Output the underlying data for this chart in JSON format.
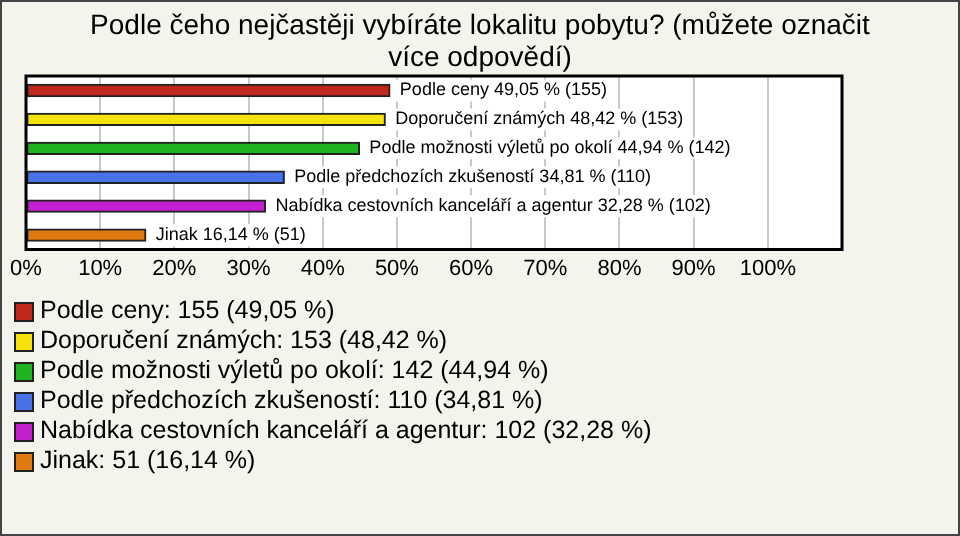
{
  "chart_data": {
    "type": "bar",
    "orientation": "horizontal",
    "stacked": true,
    "title": "Podle čeho nejčastěji vybíráte lokalitu pobytu? (můžete označit více odpovědí)",
    "categories": [
      null,
      null,
      null,
      null,
      null,
      null
    ],
    "series": [
      {
        "name": "Podle ceny: 155 (49,05 %)",
        "color": "#c0281e",
        "values": [
          49.05,
          null,
          null,
          null,
          null,
          null
        ],
        "value_labels": [
          "Podle ceny 49,05 % (155)",
          null,
          null,
          null,
          null,
          null
        ]
      },
      {
        "name": "Doporučení známých: 153 (48,42 %)",
        "color": "#f5e20a",
        "values": [
          null,
          48.42,
          null,
          null,
          null,
          null
        ],
        "value_labels": [
          null,
          "Doporučení známých 48,42 % (153)",
          null,
          null,
          null,
          null
        ]
      },
      {
        "name": "Podle možnosti výletů po okolí: 142 (44,94 %)",
        "color": "#1fb41f",
        "values": [
          null,
          null,
          44.94,
          null,
          null,
          null
        ],
        "value_labels": [
          null,
          null,
          "Podle možnosti výletů po okolí 44,94 % (142)",
          null,
          null,
          null
        ]
      },
      {
        "name": "Podle předchozích zkušeností: 110 (34,81 %)",
        "color": "#4a72e8",
        "values": [
          null,
          null,
          null,
          34.81,
          null,
          null
        ],
        "value_labels": [
          null,
          null,
          null,
          "Podle předchozích zkušeností 34,81 % (110)",
          null,
          null
        ]
      },
      {
        "name": "Nabídka cestovních kanceláří a agentur: 102 (32,28 %)",
        "color": "#c21fcf",
        "values": [
          null,
          null,
          null,
          null,
          32.28,
          null
        ],
        "value_labels": [
          null,
          null,
          null,
          null,
          "Nabídka cestovních kanceláří a agentur 32,28 % (102)",
          null
        ]
      },
      {
        "name": "Jinak: 51 (16,14 %)",
        "color": "#e07a10",
        "values": [
          null,
          null,
          null,
          null,
          null,
          16.14
        ],
        "value_labels": [
          null,
          null,
          null,
          null,
          null,
          "Jinak 16,14 % (51)"
        ]
      }
    ],
    "xlim": [
      0,
      110
    ],
    "xticks": [
      {
        "value": 0,
        "label": "0%"
      },
      {
        "value": 10,
        "label": "10%"
      },
      {
        "value": 20,
        "label": "20%"
      },
      {
        "value": 30,
        "label": "30%"
      },
      {
        "value": 40,
        "label": "40%"
      },
      {
        "value": 50,
        "label": "50%"
      },
      {
        "value": 60,
        "label": "60%"
      },
      {
        "value": 70,
        "label": "70%"
      },
      {
        "value": 80,
        "label": "80%"
      },
      {
        "value": 90,
        "label": "90%"
      },
      {
        "value": 100,
        "label": "100%"
      }
    ],
    "grid": "x",
    "tick_labels": "x",
    "legend": "bottom"
  }
}
